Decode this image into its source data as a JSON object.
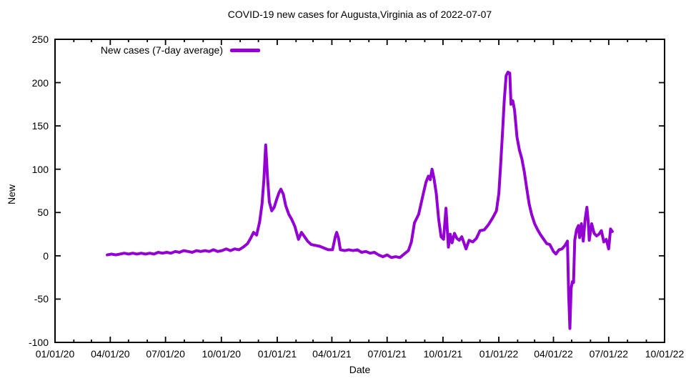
{
  "title": "COVID-19 new cases for Augusta,Virginia as of 2022-07-07",
  "legend": {
    "label": "New cases (7-day average)",
    "position": "top-left-inside"
  },
  "axes": {
    "x_label": "Date",
    "y_label": "New",
    "x_tick_labels": [
      "01/01/20",
      "04/01/20",
      "07/01/20",
      "10/01/20",
      "01/01/21",
      "04/01/21",
      "07/01/21",
      "10/01/21",
      "01/01/22",
      "04/01/22",
      "07/01/22",
      "10/01/22"
    ],
    "y_tick_labels": [
      "-100",
      "-50",
      "0",
      "50",
      "100",
      "150",
      "200",
      "250"
    ]
  },
  "colors": {
    "line": "#9400d3",
    "frame": "#000000",
    "text": "#000000",
    "background": "#ffffff"
  },
  "chart_data": {
    "type": "line",
    "title": "COVID-19 new cases for Augusta,Virginia as of 2022-07-07",
    "xlabel": "Date",
    "ylabel": "New",
    "grid": false,
    "legend_position": "top-left-inside",
    "x_range": [
      "2020-01-01",
      "2022-10-01"
    ],
    "ylim": [
      -100,
      250
    ],
    "yticks": [
      -100,
      -50,
      0,
      50,
      100,
      150,
      200,
      250
    ],
    "x_major_tick_interval": "3 months",
    "x_minor_tick_interval": "1 month",
    "series": [
      {
        "name": "New cases (7-day average)",
        "color": "#9400d3",
        "points": [
          [
            "2020-03-27",
            1
          ],
          [
            "2020-04-03",
            2
          ],
          [
            "2020-04-10",
            1
          ],
          [
            "2020-04-17",
            2
          ],
          [
            "2020-04-24",
            3
          ],
          [
            "2020-05-01",
            2
          ],
          [
            "2020-05-08",
            3
          ],
          [
            "2020-05-15",
            2
          ],
          [
            "2020-05-22",
            3
          ],
          [
            "2020-05-29",
            2
          ],
          [
            "2020-06-05",
            3
          ],
          [
            "2020-06-12",
            2
          ],
          [
            "2020-06-19",
            4
          ],
          [
            "2020-06-26",
            3
          ],
          [
            "2020-07-03",
            4
          ],
          [
            "2020-07-10",
            3
          ],
          [
            "2020-07-17",
            5
          ],
          [
            "2020-07-24",
            4
          ],
          [
            "2020-07-31",
            6
          ],
          [
            "2020-08-07",
            5
          ],
          [
            "2020-08-14",
            4
          ],
          [
            "2020-08-21",
            6
          ],
          [
            "2020-08-28",
            5
          ],
          [
            "2020-09-04",
            6
          ],
          [
            "2020-09-11",
            5
          ],
          [
            "2020-09-18",
            7
          ],
          [
            "2020-09-25",
            5
          ],
          [
            "2020-10-02",
            6
          ],
          [
            "2020-10-09",
            8
          ],
          [
            "2020-10-16",
            6
          ],
          [
            "2020-10-23",
            8
          ],
          [
            "2020-10-30",
            7
          ],
          [
            "2020-11-06",
            10
          ],
          [
            "2020-11-13",
            14
          ],
          [
            "2020-11-18",
            20
          ],
          [
            "2020-11-23",
            27
          ],
          [
            "2020-11-28",
            24
          ],
          [
            "2020-12-03",
            39
          ],
          [
            "2020-12-07",
            60
          ],
          [
            "2020-12-10",
            88
          ],
          [
            "2020-12-13",
            128
          ],
          [
            "2020-12-16",
            90
          ],
          [
            "2020-12-19",
            62
          ],
          [
            "2020-12-23",
            52
          ],
          [
            "2020-12-27",
            56
          ],
          [
            "2020-12-31",
            65
          ],
          [
            "2021-01-04",
            73
          ],
          [
            "2021-01-07",
            77
          ],
          [
            "2021-01-11",
            71
          ],
          [
            "2021-01-15",
            58
          ],
          [
            "2021-01-20",
            48
          ],
          [
            "2021-01-25",
            42
          ],
          [
            "2021-01-30",
            34
          ],
          [
            "2021-02-05",
            19
          ],
          [
            "2021-02-10",
            27
          ],
          [
            "2021-02-15",
            22
          ],
          [
            "2021-02-20",
            17
          ],
          [
            "2021-02-26",
            13
          ],
          [
            "2021-03-05",
            12
          ],
          [
            "2021-03-12",
            11
          ],
          [
            "2021-03-19",
            9
          ],
          [
            "2021-03-26",
            7
          ],
          [
            "2021-04-02",
            7
          ],
          [
            "2021-04-07",
            23
          ],
          [
            "2021-04-09",
            27
          ],
          [
            "2021-04-12",
            20
          ],
          [
            "2021-04-15",
            7
          ],
          [
            "2021-04-22",
            6
          ],
          [
            "2021-04-29",
            7
          ],
          [
            "2021-05-06",
            6
          ],
          [
            "2021-05-13",
            7
          ],
          [
            "2021-05-20",
            4
          ],
          [
            "2021-05-27",
            5
          ],
          [
            "2021-06-03",
            3
          ],
          [
            "2021-06-10",
            4
          ],
          [
            "2021-06-17",
            1
          ],
          [
            "2021-06-24",
            -1
          ],
          [
            "2021-07-01",
            1
          ],
          [
            "2021-07-08",
            -2
          ],
          [
            "2021-07-15",
            -1
          ],
          [
            "2021-07-22",
            -2
          ],
          [
            "2021-07-29",
            2
          ],
          [
            "2021-08-05",
            6
          ],
          [
            "2021-08-10",
            16
          ],
          [
            "2021-08-15",
            38
          ],
          [
            "2021-08-22",
            48
          ],
          [
            "2021-08-29",
            70
          ],
          [
            "2021-09-03",
            85
          ],
          [
            "2021-09-07",
            92
          ],
          [
            "2021-09-10",
            88
          ],
          [
            "2021-09-13",
            100
          ],
          [
            "2021-09-16",
            90
          ],
          [
            "2021-09-20",
            72
          ],
          [
            "2021-09-24",
            42
          ],
          [
            "2021-09-28",
            22
          ],
          [
            "2021-10-02",
            19
          ],
          [
            "2021-10-06",
            55
          ],
          [
            "2021-10-10",
            10
          ],
          [
            "2021-10-13",
            25
          ],
          [
            "2021-10-16",
            15
          ],
          [
            "2021-10-20",
            26
          ],
          [
            "2021-10-24",
            20
          ],
          [
            "2021-10-28",
            18
          ],
          [
            "2021-11-01",
            22
          ],
          [
            "2021-11-08",
            8
          ],
          [
            "2021-11-13",
            18
          ],
          [
            "2021-11-19",
            16
          ],
          [
            "2021-11-25",
            20
          ],
          [
            "2021-12-01",
            29
          ],
          [
            "2021-12-08",
            30
          ],
          [
            "2021-12-15",
            36
          ],
          [
            "2021-12-22",
            44
          ],
          [
            "2021-12-28",
            52
          ],
          [
            "2022-01-01",
            72
          ],
          [
            "2022-01-04",
            105
          ],
          [
            "2022-01-07",
            142
          ],
          [
            "2022-01-10",
            180
          ],
          [
            "2022-01-13",
            208
          ],
          [
            "2022-01-16",
            212
          ],
          [
            "2022-01-19",
            211
          ],
          [
            "2022-01-21",
            175
          ],
          [
            "2022-01-24",
            179
          ],
          [
            "2022-01-27",
            168
          ],
          [
            "2022-01-31",
            137
          ],
          [
            "2022-02-04",
            122
          ],
          [
            "2022-02-08",
            112
          ],
          [
            "2022-02-12",
            97
          ],
          [
            "2022-02-16",
            78
          ],
          [
            "2022-02-20",
            60
          ],
          [
            "2022-02-24",
            48
          ],
          [
            "2022-03-01",
            37
          ],
          [
            "2022-03-06",
            30
          ],
          [
            "2022-03-11",
            24
          ],
          [
            "2022-03-16",
            19
          ],
          [
            "2022-03-21",
            14
          ],
          [
            "2022-03-26",
            13
          ],
          [
            "2022-04-01",
            5
          ],
          [
            "2022-04-05",
            2
          ],
          [
            "2022-04-10",
            7
          ],
          [
            "2022-04-15",
            8
          ],
          [
            "2022-04-20",
            12
          ],
          [
            "2022-04-24",
            17
          ],
          [
            "2022-04-26",
            -45
          ],
          [
            "2022-04-28",
            -84
          ],
          [
            "2022-04-30",
            -38
          ],
          [
            "2022-05-02",
            -30
          ],
          [
            "2022-05-04",
            -31
          ],
          [
            "2022-05-06",
            18
          ],
          [
            "2022-05-09",
            30
          ],
          [
            "2022-05-12",
            35
          ],
          [
            "2022-05-14",
            21
          ],
          [
            "2022-05-17",
            37
          ],
          [
            "2022-05-20",
            17
          ],
          [
            "2022-05-23",
            41
          ],
          [
            "2022-05-26",
            56
          ],
          [
            "2022-05-28",
            41
          ],
          [
            "2022-05-30",
            18
          ],
          [
            "2022-06-03",
            37
          ],
          [
            "2022-06-07",
            26
          ],
          [
            "2022-06-11",
            23
          ],
          [
            "2022-06-15",
            25
          ],
          [
            "2022-06-19",
            29
          ],
          [
            "2022-06-23",
            16
          ],
          [
            "2022-06-27",
            19
          ],
          [
            "2022-07-01",
            8
          ],
          [
            "2022-07-04",
            31
          ],
          [
            "2022-07-07",
            28
          ]
        ]
      }
    ]
  }
}
